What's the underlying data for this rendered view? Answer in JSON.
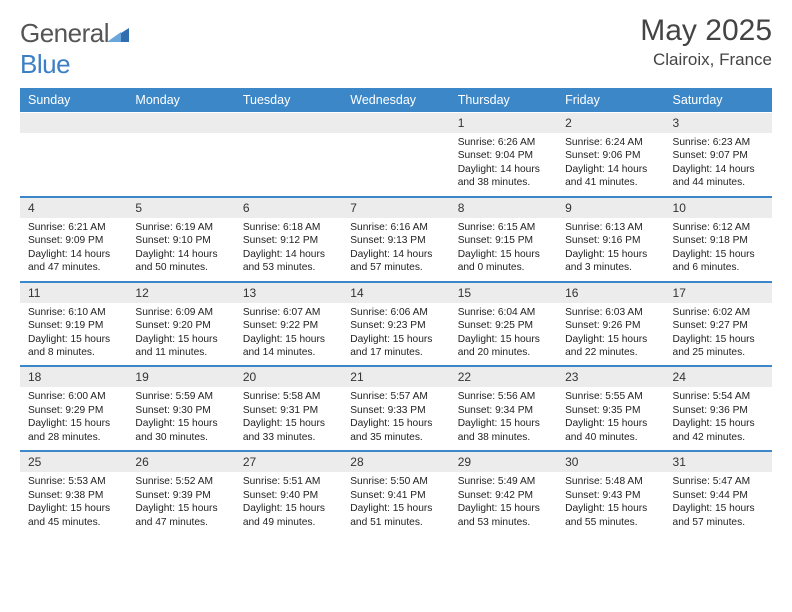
{
  "brand": {
    "part1": "General",
    "part2": "Blue"
  },
  "title": "May 2025",
  "location": "Clairoix, France",
  "colors": {
    "brand_blue": "#3b87c8",
    "header_bg": "#3b87c8",
    "daynum_bg": "#ececec",
    "text": "#222"
  },
  "dow": [
    "Sunday",
    "Monday",
    "Tuesday",
    "Wednesday",
    "Thursday",
    "Friday",
    "Saturday"
  ],
  "weeks": [
    {
      "days": [
        null,
        null,
        null,
        null,
        {
          "n": "1",
          "sr": "Sunrise: 6:26 AM",
          "ss": "Sunset: 9:04 PM",
          "d1": "Daylight: 14 hours",
          "d2": "and 38 minutes."
        },
        {
          "n": "2",
          "sr": "Sunrise: 6:24 AM",
          "ss": "Sunset: 9:06 PM",
          "d1": "Daylight: 14 hours",
          "d2": "and 41 minutes."
        },
        {
          "n": "3",
          "sr": "Sunrise: 6:23 AM",
          "ss": "Sunset: 9:07 PM",
          "d1": "Daylight: 14 hours",
          "d2": "and 44 minutes."
        }
      ]
    },
    {
      "days": [
        {
          "n": "4",
          "sr": "Sunrise: 6:21 AM",
          "ss": "Sunset: 9:09 PM",
          "d1": "Daylight: 14 hours",
          "d2": "and 47 minutes."
        },
        {
          "n": "5",
          "sr": "Sunrise: 6:19 AM",
          "ss": "Sunset: 9:10 PM",
          "d1": "Daylight: 14 hours",
          "d2": "and 50 minutes."
        },
        {
          "n": "6",
          "sr": "Sunrise: 6:18 AM",
          "ss": "Sunset: 9:12 PM",
          "d1": "Daylight: 14 hours",
          "d2": "and 53 minutes."
        },
        {
          "n": "7",
          "sr": "Sunrise: 6:16 AM",
          "ss": "Sunset: 9:13 PM",
          "d1": "Daylight: 14 hours",
          "d2": "and 57 minutes."
        },
        {
          "n": "8",
          "sr": "Sunrise: 6:15 AM",
          "ss": "Sunset: 9:15 PM",
          "d1": "Daylight: 15 hours",
          "d2": "and 0 minutes."
        },
        {
          "n": "9",
          "sr": "Sunrise: 6:13 AM",
          "ss": "Sunset: 9:16 PM",
          "d1": "Daylight: 15 hours",
          "d2": "and 3 minutes."
        },
        {
          "n": "10",
          "sr": "Sunrise: 6:12 AM",
          "ss": "Sunset: 9:18 PM",
          "d1": "Daylight: 15 hours",
          "d2": "and 6 minutes."
        }
      ]
    },
    {
      "days": [
        {
          "n": "11",
          "sr": "Sunrise: 6:10 AM",
          "ss": "Sunset: 9:19 PM",
          "d1": "Daylight: 15 hours",
          "d2": "and 8 minutes."
        },
        {
          "n": "12",
          "sr": "Sunrise: 6:09 AM",
          "ss": "Sunset: 9:20 PM",
          "d1": "Daylight: 15 hours",
          "d2": "and 11 minutes."
        },
        {
          "n": "13",
          "sr": "Sunrise: 6:07 AM",
          "ss": "Sunset: 9:22 PM",
          "d1": "Daylight: 15 hours",
          "d2": "and 14 minutes."
        },
        {
          "n": "14",
          "sr": "Sunrise: 6:06 AM",
          "ss": "Sunset: 9:23 PM",
          "d1": "Daylight: 15 hours",
          "d2": "and 17 minutes."
        },
        {
          "n": "15",
          "sr": "Sunrise: 6:04 AM",
          "ss": "Sunset: 9:25 PM",
          "d1": "Daylight: 15 hours",
          "d2": "and 20 minutes."
        },
        {
          "n": "16",
          "sr": "Sunrise: 6:03 AM",
          "ss": "Sunset: 9:26 PM",
          "d1": "Daylight: 15 hours",
          "d2": "and 22 minutes."
        },
        {
          "n": "17",
          "sr": "Sunrise: 6:02 AM",
          "ss": "Sunset: 9:27 PM",
          "d1": "Daylight: 15 hours",
          "d2": "and 25 minutes."
        }
      ]
    },
    {
      "days": [
        {
          "n": "18",
          "sr": "Sunrise: 6:00 AM",
          "ss": "Sunset: 9:29 PM",
          "d1": "Daylight: 15 hours",
          "d2": "and 28 minutes."
        },
        {
          "n": "19",
          "sr": "Sunrise: 5:59 AM",
          "ss": "Sunset: 9:30 PM",
          "d1": "Daylight: 15 hours",
          "d2": "and 30 minutes."
        },
        {
          "n": "20",
          "sr": "Sunrise: 5:58 AM",
          "ss": "Sunset: 9:31 PM",
          "d1": "Daylight: 15 hours",
          "d2": "and 33 minutes."
        },
        {
          "n": "21",
          "sr": "Sunrise: 5:57 AM",
          "ss": "Sunset: 9:33 PM",
          "d1": "Daylight: 15 hours",
          "d2": "and 35 minutes."
        },
        {
          "n": "22",
          "sr": "Sunrise: 5:56 AM",
          "ss": "Sunset: 9:34 PM",
          "d1": "Daylight: 15 hours",
          "d2": "and 38 minutes."
        },
        {
          "n": "23",
          "sr": "Sunrise: 5:55 AM",
          "ss": "Sunset: 9:35 PM",
          "d1": "Daylight: 15 hours",
          "d2": "and 40 minutes."
        },
        {
          "n": "24",
          "sr": "Sunrise: 5:54 AM",
          "ss": "Sunset: 9:36 PM",
          "d1": "Daylight: 15 hours",
          "d2": "and 42 minutes."
        }
      ]
    },
    {
      "days": [
        {
          "n": "25",
          "sr": "Sunrise: 5:53 AM",
          "ss": "Sunset: 9:38 PM",
          "d1": "Daylight: 15 hours",
          "d2": "and 45 minutes."
        },
        {
          "n": "26",
          "sr": "Sunrise: 5:52 AM",
          "ss": "Sunset: 9:39 PM",
          "d1": "Daylight: 15 hours",
          "d2": "and 47 minutes."
        },
        {
          "n": "27",
          "sr": "Sunrise: 5:51 AM",
          "ss": "Sunset: 9:40 PM",
          "d1": "Daylight: 15 hours",
          "d2": "and 49 minutes."
        },
        {
          "n": "28",
          "sr": "Sunrise: 5:50 AM",
          "ss": "Sunset: 9:41 PM",
          "d1": "Daylight: 15 hours",
          "d2": "and 51 minutes."
        },
        {
          "n": "29",
          "sr": "Sunrise: 5:49 AM",
          "ss": "Sunset: 9:42 PM",
          "d1": "Daylight: 15 hours",
          "d2": "and 53 minutes."
        },
        {
          "n": "30",
          "sr": "Sunrise: 5:48 AM",
          "ss": "Sunset: 9:43 PM",
          "d1": "Daylight: 15 hours",
          "d2": "and 55 minutes."
        },
        {
          "n": "31",
          "sr": "Sunrise: 5:47 AM",
          "ss": "Sunset: 9:44 PM",
          "d1": "Daylight: 15 hours",
          "d2": "and 57 minutes."
        }
      ]
    }
  ]
}
